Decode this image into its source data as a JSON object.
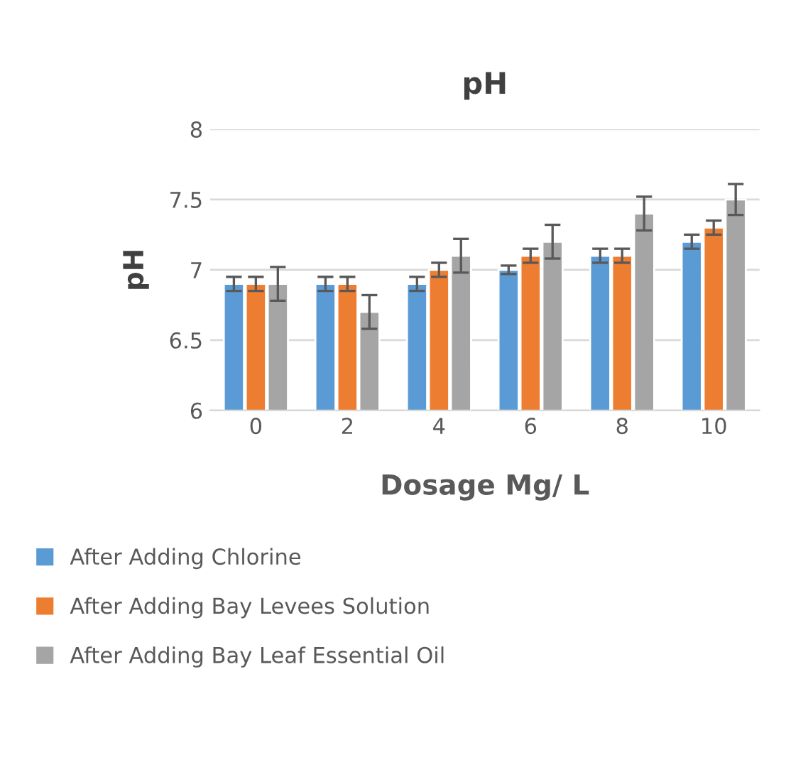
{
  "chart_data": {
    "type": "bar",
    "title": "pH",
    "xlabel": "Dosage Mg/ L",
    "ylabel": "pH",
    "categories": [
      "0",
      "2",
      "4",
      "6",
      "8",
      "10"
    ],
    "series": [
      {
        "name": "After Adding Chlorine",
        "color": "#5b9bd5",
        "values": [
          6.9,
          6.9,
          6.9,
          7.0,
          7.1,
          7.2
        ],
        "errors": [
          0.05,
          0.05,
          0.05,
          0.03,
          0.05,
          0.05
        ]
      },
      {
        "name": "After Adding Bay Levees Solution",
        "color": "#ed7d31",
        "values": [
          6.9,
          6.9,
          7.0,
          7.1,
          7.1,
          7.3
        ],
        "errors": [
          0.05,
          0.05,
          0.05,
          0.05,
          0.05,
          0.05
        ]
      },
      {
        "name": "After Adding Bay Leaf Essential Oil",
        "color": "#a5a5a5",
        "values": [
          6.9,
          6.7,
          7.1,
          7.2,
          7.4,
          7.5
        ],
        "errors": [
          0.12,
          0.12,
          0.12,
          0.12,
          0.12,
          0.11
        ]
      }
    ],
    "ylim": [
      6,
      8
    ],
    "yticks": [
      6,
      6.5,
      7,
      7.5,
      8
    ],
    "grid": "y",
    "legend": "bottom"
  }
}
